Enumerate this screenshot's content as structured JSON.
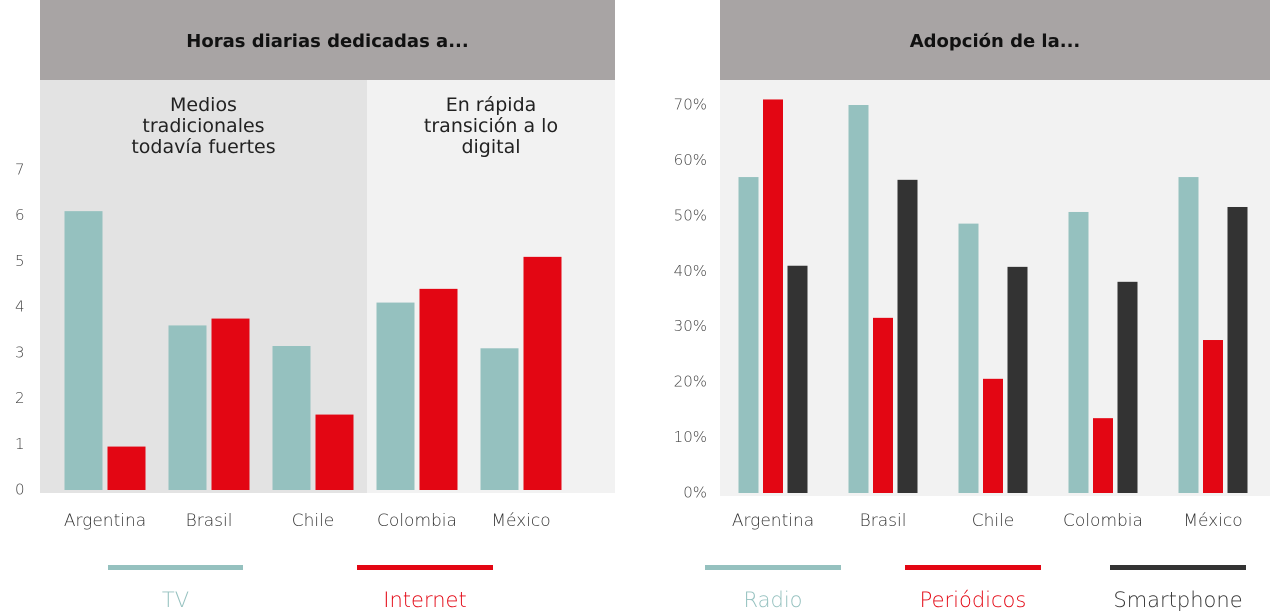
{
  "chart_data": [
    {
      "type": "bar",
      "title": "Horas diarias dedicadas a...",
      "categories": [
        "Argentina",
        "Brasil",
        "Chile",
        "Colombia",
        "México"
      ],
      "series": [
        {
          "name": "TV",
          "color": "#95c1bf",
          "values": [
            6.1,
            3.6,
            3.15,
            4.1,
            3.1
          ]
        },
        {
          "name": "Internet",
          "color": "#e30613",
          "values": [
            0.95,
            3.75,
            1.65,
            4.4,
            5.1
          ]
        }
      ],
      "annotations": [
        "Medios tradicionales todavía fuertes",
        "En rápida transición a lo digital"
      ],
      "ylim": [
        0,
        7
      ],
      "yticks": [
        0,
        1,
        2,
        3,
        4,
        5,
        6,
        7
      ],
      "grid": false
    },
    {
      "type": "bar",
      "title": "Adopción de la...",
      "categories": [
        "Argentina",
        "Brasil",
        "Chile",
        "Colombia",
        "México"
      ],
      "series": [
        {
          "name": "Radio",
          "color": "#95c1bf",
          "values": [
            57,
            70,
            48.6,
            50.7,
            57
          ]
        },
        {
          "name": "Periódicos",
          "color": "#e30613",
          "values": [
            71,
            31.6,
            20.6,
            13.5,
            27.6
          ]
        },
        {
          "name": "Smartphone",
          "color": "#333333",
          "values": [
            41,
            56.5,
            40.8,
            38.1,
            51.6
          ]
        }
      ],
      "ylim": [
        0,
        70
      ],
      "yticks": [
        {
          "value": 0,
          "label": "0%"
        },
        {
          "value": 10,
          "label": "10%"
        },
        {
          "value": 20,
          "label": "20%"
        },
        {
          "value": 30,
          "label": "30%"
        },
        {
          "value": 40,
          "label": "40%"
        },
        {
          "value": 50,
          "label": "50%"
        },
        {
          "value": 60,
          "label": "60%"
        },
        {
          "value": 70,
          "label": "70%"
        }
      ],
      "grid": false
    }
  ]
}
